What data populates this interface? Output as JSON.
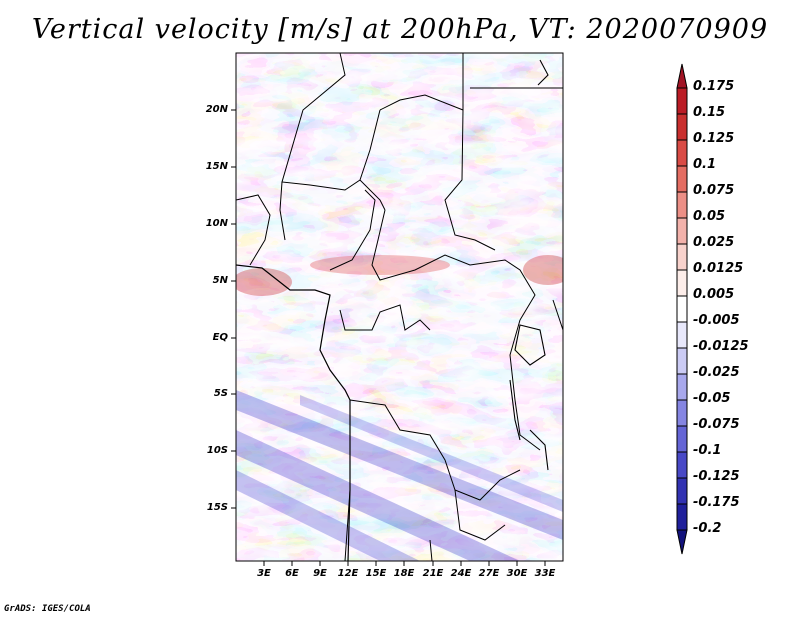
{
  "title": "Vertical velocity [m/s] at 200hPa, VT: 2020070909",
  "footer": "GrADS: IGES/COLA",
  "map": {
    "lat_ticks": [
      "20N",
      "15N",
      "10N",
      "5N",
      "EQ",
      "5S",
      "10S",
      "15S"
    ],
    "lon_ticks": [
      "3E",
      "6E",
      "9E",
      "12E",
      "15E",
      "18E",
      "21E",
      "24E",
      "27E",
      "30E",
      "33E"
    ]
  },
  "colorbar": {
    "labels": [
      "0.175",
      "0.15",
      "0.125",
      "0.1",
      "0.075",
      "0.05",
      "0.025",
      "0.0125",
      "0.005",
      "-0.005",
      "-0.0125",
      "-0.025",
      "-0.05",
      "-0.075",
      "-0.1",
      "-0.125",
      "-0.175",
      "-0.2"
    ],
    "colors": [
      "#a11425",
      "#bb1c25",
      "#c92f2e",
      "#d94b45",
      "#e46d62",
      "#ec8f86",
      "#f3b2ab",
      "#f8d2cc",
      "#fdeeea",
      "#ffffff",
      "#e8e8fb",
      "#cbcbf4",
      "#a8a8ec",
      "#8585e2",
      "#6565d6",
      "#4848c6",
      "#3232b2",
      "#20209b",
      "#12127c"
    ]
  }
}
